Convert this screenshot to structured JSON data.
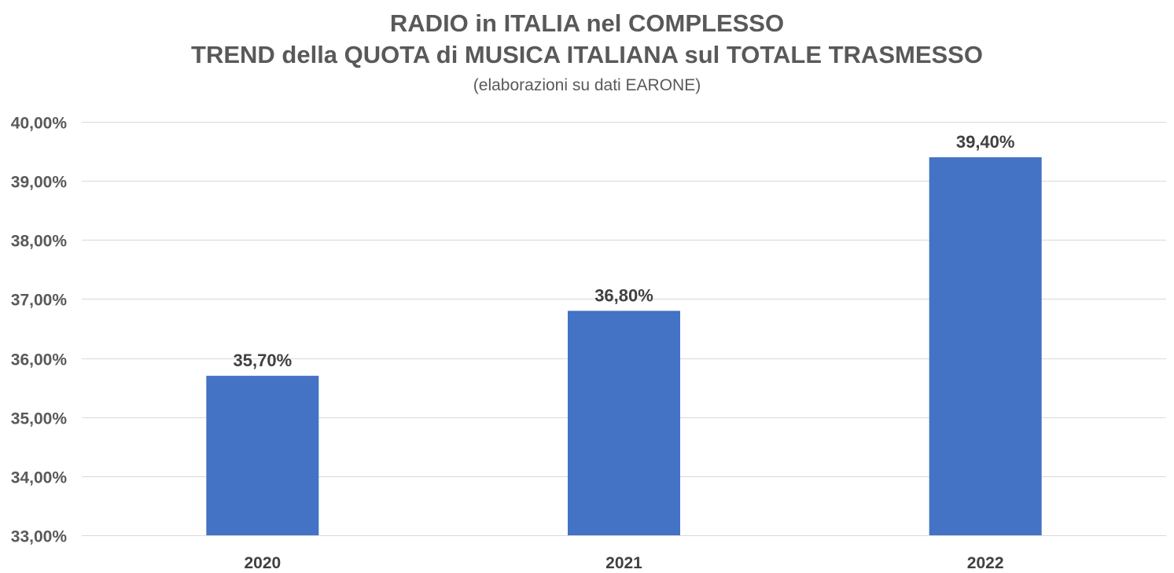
{
  "chart_data": {
    "type": "bar",
    "title_line1": "RADIO in ITALIA nel COMPLESSO",
    "title_line2": "TREND della QUOTA di MUSICA ITALIANA sul TOTALE TRASMESSO",
    "subtitle": "(elaborazioni su dati EARONE)",
    "xlabel": "",
    "ylabel": "",
    "categories": [
      "2020",
      "2021",
      "2022"
    ],
    "values": [
      35.7,
      36.8,
      39.4
    ],
    "data_labels": [
      "35,70%",
      "36,80%",
      "39,40%"
    ],
    "ylim": [
      33,
      40
    ],
    "y_ticks": [
      33,
      34,
      35,
      36,
      37,
      38,
      39,
      40
    ],
    "y_tick_labels": [
      "33,00%",
      "34,00%",
      "35,00%",
      "36,00%",
      "37,00%",
      "38,00%",
      "39,00%",
      "40,00%"
    ],
    "grid": true,
    "legend": "none",
    "bar_color": "#4472C4",
    "gridline_color": "#D9D9D9"
  }
}
